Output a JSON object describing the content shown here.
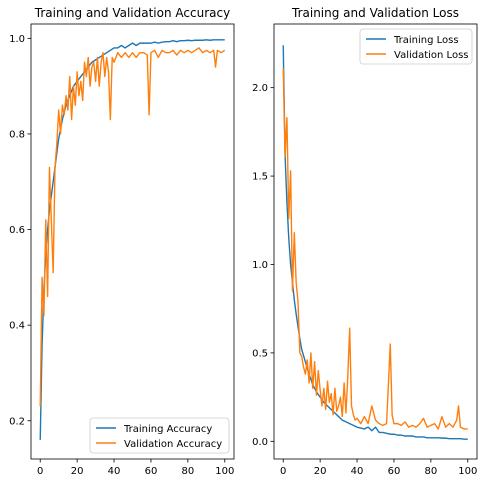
{
  "chart_data": [
    {
      "type": "line",
      "title": "Training and Validation Accuracy",
      "xlabel": "",
      "ylabel": "",
      "xlim": [
        -5,
        105
      ],
      "ylim": [
        0.12,
        1.03
      ],
      "xticks": [
        0,
        20,
        40,
        60,
        80,
        100
      ],
      "yticks": [
        0.2,
        0.4,
        0.6,
        0.8,
        1.0
      ],
      "ytick_labels": [
        "0.2",
        "0.4",
        "0.6",
        "0.8",
        "1.0"
      ],
      "legend": "lower-right",
      "grid": false,
      "series": [
        {
          "name": "Training Accuracy",
          "color": "#1f77b4",
          "x": [
            0,
            1,
            2,
            3,
            4,
            5,
            6,
            7,
            8,
            9,
            10,
            12,
            14,
            16,
            18,
            20,
            22,
            24,
            26,
            28,
            30,
            32,
            34,
            36,
            38,
            40,
            42,
            44,
            46,
            48,
            50,
            52,
            54,
            56,
            58,
            60,
            62,
            64,
            66,
            68,
            70,
            72,
            74,
            76,
            78,
            80,
            82,
            84,
            86,
            88,
            90,
            92,
            94,
            96,
            98,
            100
          ],
          "y": [
            0.16,
            0.36,
            0.47,
            0.55,
            0.6,
            0.64,
            0.67,
            0.7,
            0.73,
            0.76,
            0.79,
            0.83,
            0.86,
            0.88,
            0.9,
            0.91,
            0.92,
            0.93,
            0.94,
            0.95,
            0.955,
            0.96,
            0.965,
            0.97,
            0.975,
            0.98,
            0.98,
            0.985,
            0.98,
            0.985,
            0.99,
            0.985,
            0.99,
            0.99,
            0.99,
            0.99,
            0.992,
            0.99,
            0.992,
            0.993,
            0.993,
            0.995,
            0.993,
            0.995,
            0.995,
            0.996,
            0.995,
            0.996,
            0.996,
            0.996,
            0.997,
            0.996,
            0.997,
            0.997,
            0.997,
            0.997
          ]
        },
        {
          "name": "Validation Accuracy",
          "color": "#ff7f0e",
          "x": [
            0,
            1,
            2,
            3,
            4,
            5,
            6,
            7,
            8,
            9,
            10,
            11,
            12,
            13,
            14,
            15,
            16,
            17,
            18,
            19,
            20,
            21,
            22,
            23,
            24,
            25,
            26,
            27,
            28,
            29,
            30,
            31,
            32,
            33,
            34,
            35,
            36,
            37,
            38,
            39,
            40,
            42,
            44,
            46,
            48,
            50,
            52,
            54,
            56,
            58,
            59,
            60,
            62,
            64,
            66,
            68,
            70,
            72,
            74,
            76,
            78,
            80,
            82,
            84,
            86,
            88,
            90,
            92,
            94,
            95,
            96,
            98,
            100
          ],
          "y": [
            0.23,
            0.5,
            0.42,
            0.62,
            0.46,
            0.73,
            0.62,
            0.51,
            0.73,
            0.78,
            0.85,
            0.8,
            0.86,
            0.84,
            0.88,
            0.85,
            0.92,
            0.83,
            0.9,
            0.86,
            0.93,
            0.88,
            0.91,
            0.87,
            0.95,
            0.92,
            0.96,
            0.9,
            0.94,
            0.95,
            0.91,
            0.96,
            0.9,
            0.95,
            0.97,
            0.92,
            0.96,
            0.93,
            0.83,
            0.96,
            0.95,
            0.97,
            0.96,
            0.97,
            0.96,
            0.97,
            0.96,
            0.97,
            0.97,
            0.965,
            0.84,
            0.97,
            0.975,
            0.96,
            0.975,
            0.97,
            0.97,
            0.975,
            0.965,
            0.975,
            0.97,
            0.975,
            0.97,
            0.975,
            0.98,
            0.97,
            0.975,
            0.97,
            0.975,
            0.94,
            0.975,
            0.97,
            0.975
          ]
        }
      ]
    },
    {
      "type": "line",
      "title": "Training and Validation Loss",
      "xlabel": "",
      "ylabel": "",
      "xlim": [
        -5,
        105
      ],
      "ylim": [
        -0.1,
        2.36
      ],
      "xticks": [
        0,
        20,
        40,
        60,
        80,
        100
      ],
      "yticks": [
        0.0,
        0.5,
        1.0,
        1.5,
        2.0
      ],
      "ytick_labels": [
        "0.0",
        "0.5",
        "1.0",
        "1.5",
        "2.0"
      ],
      "legend": "top-right",
      "grid": false,
      "series": [
        {
          "name": "Training Loss",
          "color": "#1f77b4",
          "x": [
            0,
            1,
            2,
            3,
            4,
            5,
            6,
            7,
            8,
            9,
            10,
            12,
            14,
            16,
            18,
            20,
            22,
            24,
            26,
            28,
            30,
            32,
            34,
            36,
            38,
            40,
            42,
            44,
            46,
            48,
            50,
            52,
            54,
            56,
            58,
            60,
            62,
            64,
            66,
            68,
            70,
            72,
            74,
            76,
            78,
            80,
            82,
            84,
            86,
            88,
            90,
            92,
            94,
            96,
            98,
            100
          ],
          "y": [
            2.24,
            1.62,
            1.35,
            1.15,
            1.0,
            0.9,
            0.8,
            0.72,
            0.65,
            0.58,
            0.52,
            0.45,
            0.38,
            0.32,
            0.28,
            0.25,
            0.22,
            0.2,
            0.18,
            0.16,
            0.14,
            0.12,
            0.11,
            0.1,
            0.09,
            0.08,
            0.075,
            0.07,
            0.08,
            0.06,
            0.08,
            0.05,
            0.05,
            0.045,
            0.04,
            0.04,
            0.035,
            0.035,
            0.03,
            0.03,
            0.03,
            0.025,
            0.025,
            0.025,
            0.02,
            0.02,
            0.02,
            0.02,
            0.018,
            0.018,
            0.015,
            0.015,
            0.015,
            0.015,
            0.012,
            0.012
          ]
        },
        {
          "name": "Validation Loss",
          "color": "#ff7f0e",
          "x": [
            0,
            1,
            2,
            3,
            4,
            5,
            6,
            7,
            8,
            9,
            10,
            11,
            12,
            13,
            14,
            15,
            16,
            17,
            18,
            19,
            20,
            21,
            22,
            23,
            24,
            25,
            26,
            27,
            28,
            29,
            30,
            31,
            32,
            33,
            34,
            35,
            36,
            37,
            38,
            39,
            40,
            42,
            44,
            46,
            48,
            50,
            52,
            54,
            56,
            58,
            59,
            60,
            62,
            64,
            66,
            68,
            70,
            72,
            74,
            76,
            78,
            80,
            82,
            84,
            86,
            88,
            90,
            92,
            94,
            95,
            96,
            98,
            100
          ],
          "y": [
            2.11,
            1.61,
            1.83,
            1.26,
            1.53,
            0.85,
            1.18,
            0.9,
            0.79,
            0.5,
            0.48,
            0.42,
            0.38,
            0.46,
            0.33,
            0.5,
            0.3,
            0.45,
            0.26,
            0.4,
            0.29,
            0.2,
            0.3,
            0.18,
            0.34,
            0.22,
            0.27,
            0.15,
            0.3,
            0.17,
            0.2,
            0.25,
            0.14,
            0.33,
            0.16,
            0.37,
            0.64,
            0.2,
            0.15,
            0.12,
            0.13,
            0.1,
            0.14,
            0.1,
            0.2,
            0.12,
            0.1,
            0.09,
            0.1,
            0.55,
            0.15,
            0.1,
            0.1,
            0.09,
            0.11,
            0.08,
            0.09,
            0.08,
            0.1,
            0.13,
            0.08,
            0.09,
            0.1,
            0.07,
            0.14,
            0.08,
            0.1,
            0.08,
            0.12,
            0.2,
            0.08,
            0.07,
            0.07
          ]
        }
      ]
    }
  ]
}
